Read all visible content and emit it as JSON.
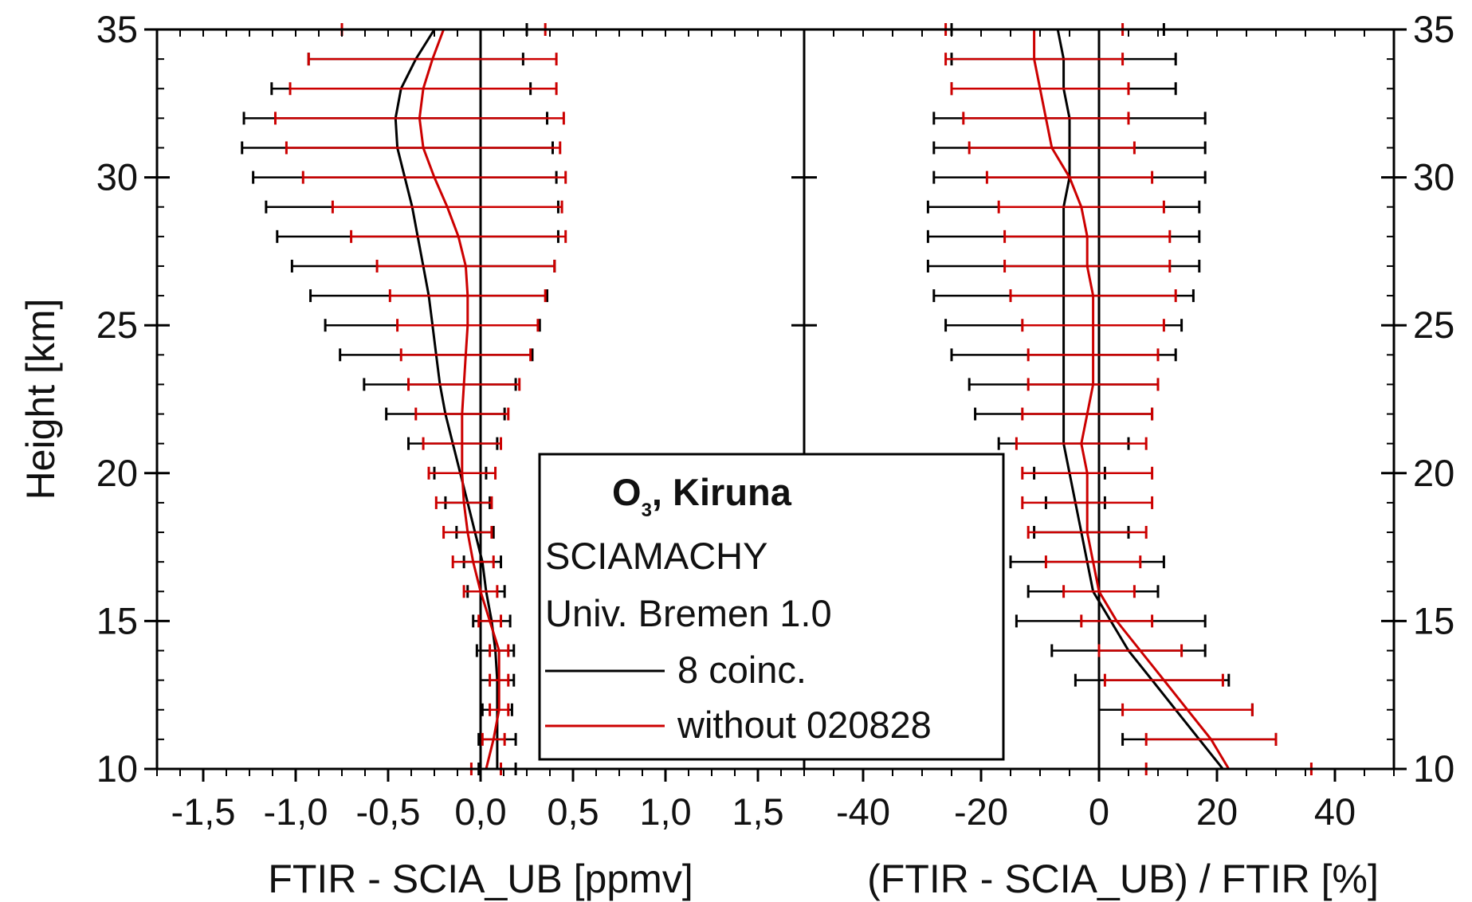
{
  "colors": {
    "series_black": "#000000",
    "series_red": "#cc0000",
    "frame": "#000000"
  },
  "chart_data": [
    {
      "type": "line",
      "xlabel": "FTIR - SCIA_UB [ppmv]",
      "ylabel": "Height [km]",
      "xlim": [
        -1.75,
        1.75
      ],
      "ylim": [
        10,
        35
      ],
      "xticks": [
        -1.5,
        -1.0,
        -0.5,
        0.0,
        0.5,
        1.0,
        1.5
      ],
      "xtick_labels": [
        "-1,5",
        "-1,0",
        "-0,5",
        "0,0",
        "0,5",
        "1,0",
        "1,5"
      ],
      "yticks": [
        10,
        15,
        20,
        25,
        30,
        35
      ],
      "ytick_labels": [
        "10",
        "15",
        "20",
        "25",
        "30",
        "35"
      ],
      "grid": false,
      "series": [
        {
          "name": "8 coinc.",
          "color": "#000000",
          "y": [
            10,
            11,
            12,
            13,
            14,
            15,
            16,
            17,
            18,
            19,
            20,
            21,
            22,
            23,
            24,
            25,
            26,
            27,
            28,
            29,
            30,
            31,
            32,
            33,
            34,
            35
          ],
          "x": [
            0.09,
            0.09,
            0.09,
            0.09,
            0.08,
            0.06,
            0.03,
            0.01,
            -0.03,
            -0.07,
            -0.11,
            -0.15,
            -0.19,
            -0.22,
            -0.24,
            -0.26,
            -0.28,
            -0.31,
            -0.34,
            -0.37,
            -0.41,
            -0.45,
            -0.46,
            -0.43,
            -0.35,
            -0.25
          ],
          "xerr_low": [
            0.1,
            0.1,
            0.08,
            0.09,
            0.1,
            0.1,
            0.1,
            0.1,
            0.1,
            0.12,
            0.14,
            0.24,
            0.32,
            0.41,
            0.52,
            0.58,
            0.64,
            0.71,
            0.76,
            0.79,
            0.82,
            0.84,
            0.82,
            0.7,
            0.58,
            0.5
          ],
          "xerr_high": [
            0.1,
            0.1,
            0.08,
            0.09,
            0.1,
            0.1,
            0.1,
            0.1,
            0.1,
            0.12,
            0.14,
            0.24,
            0.32,
            0.41,
            0.52,
            0.58,
            0.64,
            0.71,
            0.76,
            0.79,
            0.82,
            0.84,
            0.82,
            0.7,
            0.58,
            0.5
          ]
        },
        {
          "name": "without 020828",
          "color": "#cc0000",
          "y": [
            10,
            11,
            12,
            13,
            14,
            15,
            16,
            17,
            18,
            19,
            20,
            21,
            22,
            23,
            24,
            25,
            26,
            27,
            28,
            29,
            30,
            31,
            32,
            33,
            34,
            35
          ],
          "x": [
            0.03,
            0.07,
            0.1,
            0.1,
            0.1,
            0.05,
            0.0,
            -0.04,
            -0.07,
            -0.09,
            -0.1,
            -0.1,
            -0.1,
            -0.09,
            -0.08,
            -0.07,
            -0.07,
            -0.08,
            -0.12,
            -0.18,
            -0.25,
            -0.31,
            -0.33,
            -0.31,
            -0.26,
            -0.2
          ],
          "xerr_low": [
            0.08,
            0.06,
            0.05,
            0.05,
            0.05,
            0.06,
            0.09,
            0.11,
            0.13,
            0.15,
            0.18,
            0.21,
            0.25,
            0.3,
            0.35,
            0.38,
            0.42,
            0.48,
            0.58,
            0.62,
            0.71,
            0.74,
            0.78,
            0.72,
            0.67,
            0.55
          ],
          "xerr_high": [
            0.08,
            0.06,
            0.05,
            0.05,
            0.05,
            0.06,
            0.09,
            0.11,
            0.13,
            0.15,
            0.18,
            0.21,
            0.25,
            0.3,
            0.35,
            0.38,
            0.42,
            0.48,
            0.58,
            0.62,
            0.71,
            0.74,
            0.78,
            0.72,
            0.67,
            0.55
          ]
        }
      ]
    },
    {
      "type": "line",
      "xlabel": "(FTIR - SCIA_UB) / FTIR [%]",
      "ylabel": "",
      "xlim": [
        -50,
        50
      ],
      "ylim": [
        10,
        35
      ],
      "xticks": [
        -40,
        -20,
        0,
        20,
        40
      ],
      "xtick_labels": [
        "-40",
        "-20",
        "0",
        "20",
        "40"
      ],
      "yticks": [
        10,
        15,
        20,
        25,
        30,
        35
      ],
      "ytick_labels": [
        "10",
        "15",
        "20",
        "25",
        "30",
        "35"
      ],
      "grid": false,
      "series": [
        {
          "name": "8 coinc.",
          "color": "#000000",
          "y": [
            10,
            11,
            12,
            13,
            14,
            15,
            16,
            17,
            18,
            19,
            20,
            21,
            22,
            23,
            24,
            25,
            26,
            27,
            28,
            29,
            30,
            31,
            32,
            33,
            34,
            35
          ],
          "x": [
            21,
            17,
            13,
            9,
            5,
            2,
            -1,
            -2,
            -3,
            -4,
            -5,
            -6,
            -6,
            -6,
            -6,
            -6,
            -6,
            -6,
            -6,
            -6,
            -5,
            -5,
            -5,
            -6,
            -6,
            -7
          ],
          "xerr_low": [
            0,
            13,
            13,
            13,
            13,
            16,
            11,
            13,
            8,
            5,
            6,
            11,
            15,
            16,
            19,
            20,
            22,
            23,
            23,
            23,
            23,
            23,
            23,
            19,
            19,
            18
          ],
          "xerr_high": [
            0,
            13,
            13,
            13,
            13,
            16,
            11,
            13,
            8,
            5,
            6,
            11,
            15,
            16,
            19,
            20,
            22,
            23,
            23,
            23,
            23,
            23,
            23,
            19,
            19,
            18
          ]
        },
        {
          "name": "without 020828",
          "color": "#cc0000",
          "y": [
            10,
            11,
            12,
            13,
            14,
            15,
            16,
            17,
            18,
            19,
            20,
            21,
            22,
            23,
            24,
            25,
            26,
            27,
            28,
            29,
            30,
            31,
            32,
            33,
            34,
            35
          ],
          "x": [
            22,
            19,
            15,
            11,
            7,
            3,
            0,
            -1,
            -2,
            -2,
            -2,
            -3,
            -2,
            -1,
            -1,
            -1,
            -1,
            -2,
            -2,
            -3,
            -5,
            -8,
            -9,
            -10,
            -11,
            -11
          ],
          "xerr_low": [
            14,
            11,
            11,
            10,
            7,
            6,
            6,
            8,
            10,
            11,
            11,
            11,
            11,
            11,
            11,
            12,
            14,
            14,
            14,
            14,
            14,
            14,
            14,
            15,
            15,
            15
          ],
          "xerr_high": [
            14,
            11,
            11,
            10,
            7,
            6,
            6,
            8,
            10,
            11,
            11,
            11,
            11,
            11,
            11,
            12,
            14,
            14,
            14,
            14,
            14,
            14,
            14,
            15,
            15,
            15
          ]
        }
      ]
    }
  ],
  "legend": {
    "title_prefix": "O",
    "title_subscript": "3",
    "title_suffix": ", Kiruna",
    "line1": "SCIAMACHY",
    "line2": "Univ. Bremen 1.0",
    "item1_label": "8 coinc.",
    "item2_label": "without 020828"
  }
}
